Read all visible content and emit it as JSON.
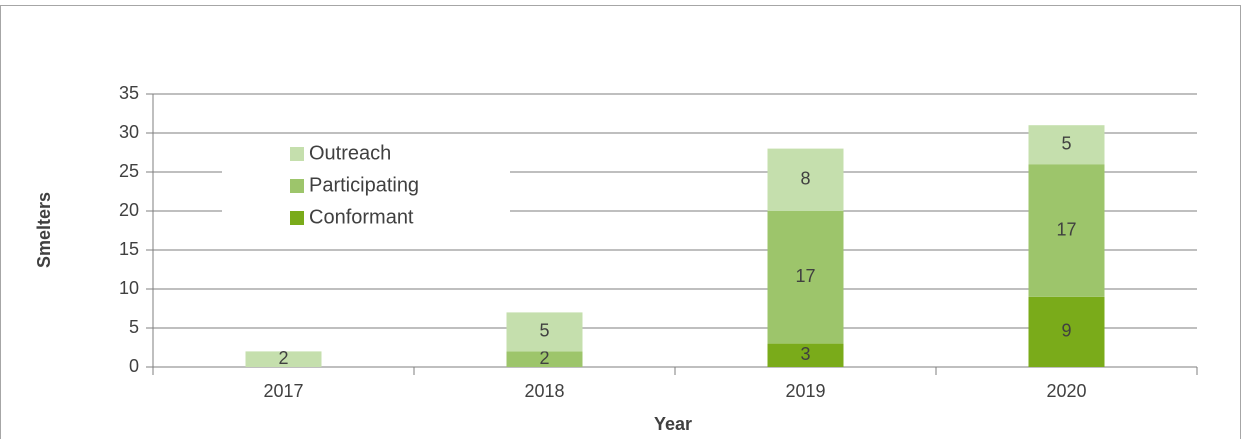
{
  "chart_data": {
    "type": "stacked_bar",
    "categories": [
      "2017",
      "2018",
      "2019",
      "2020"
    ],
    "series": [
      {
        "name": "Conformant",
        "color": "#7aab1a",
        "values": [
          null,
          null,
          3,
          9
        ]
      },
      {
        "name": "Participating",
        "color": "#9dc56b",
        "values": [
          null,
          2,
          17,
          17
        ]
      },
      {
        "name": "Outreach",
        "color": "#c5dfad",
        "values": [
          2,
          5,
          8,
          5
        ]
      }
    ],
    "xlabel": "Year",
    "ylabel": "Smelters",
    "ylim": [
      0,
      35
    ],
    "yticks": [
      0,
      5,
      10,
      15,
      20,
      25,
      30,
      35
    ],
    "grid": true,
    "legend": "upper left"
  }
}
